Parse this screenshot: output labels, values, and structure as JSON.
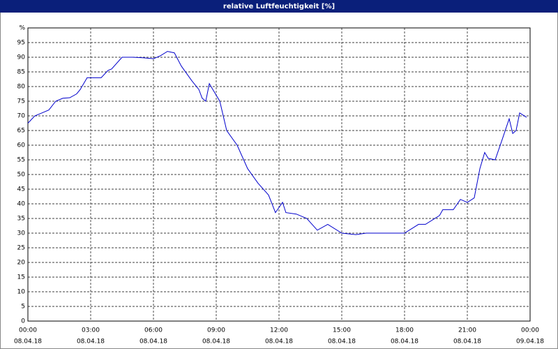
{
  "chart_data": {
    "type": "line",
    "title": "relative Luftfeuchtigkeit [%]",
    "color": "#0000cc",
    "grid": true,
    "xlim": [
      0,
      24
    ],
    "xticks": [
      {
        "value": 0,
        "label": "00:00",
        "date": "08.04.18"
      },
      {
        "value": 3,
        "label": "03:00",
        "date": "08.04.18"
      },
      {
        "value": 6,
        "label": "06:00",
        "date": "08.04.18"
      },
      {
        "value": 9,
        "label": "09:00",
        "date": "08.04.18"
      },
      {
        "value": 12,
        "label": "12:00",
        "date": "08.04.18"
      },
      {
        "value": 15,
        "label": "15:00",
        "date": "08.04.18"
      },
      {
        "value": 18,
        "label": "18:00",
        "date": "08.04.18"
      },
      {
        "value": 21,
        "label": "21:00",
        "date": "08.04.18"
      },
      {
        "value": 24,
        "label": "00:00",
        "date": "09.04.18"
      }
    ],
    "ylim": [
      0,
      100
    ],
    "yticks": [
      0,
      5,
      10,
      15,
      20,
      25,
      30,
      35,
      40,
      45,
      50,
      55,
      60,
      65,
      70,
      75,
      80,
      85,
      90,
      95,
      {
        "value": 100,
        "label": "%"
      }
    ],
    "x": [
      0,
      0.33,
      0.67,
      1,
      1.33,
      1.67,
      2,
      2.33,
      2.5,
      2.83,
      3,
      3.5,
      3.83,
      4,
      4.5,
      5,
      5.5,
      6,
      6.33,
      6.67,
      7,
      7.33,
      7.83,
      8.17,
      8.33,
      8.5,
      8.67,
      9.17,
      9.5,
      10,
      10.5,
      11,
      11.5,
      11.83,
      12.17,
      12.33,
      12.83,
      13.33,
      13.83,
      14.33,
      15,
      15.67,
      16.17,
      16.67,
      17.33,
      18,
      18.67,
      19,
      19.67,
      19.83,
      20.33,
      20.67,
      21,
      21.33,
      21.6,
      21.83,
      22,
      22.33,
      22.67,
      23,
      23.17,
      23.33,
      23.5,
      23.83
    ],
    "values": [
      67.5,
      70,
      71,
      72,
      75,
      76,
      76.2,
      77.5,
      79,
      83,
      83,
      83,
      85.5,
      86,
      90,
      90,
      89.8,
      89.5,
      90.5,
      92,
      91.5,
      87,
      82,
      79,
      76,
      75,
      81,
      75,
      65,
      60,
      52,
      47,
      43,
      37,
      40.5,
      37,
      36.5,
      35,
      31,
      33,
      30,
      29.5,
      30,
      30,
      30,
      30,
      33,
      33,
      36,
      38,
      38,
      41.5,
      40.5,
      42,
      52,
      57.5,
      55.5,
      55,
      62,
      69,
      64,
      65,
      71,
      69.5
    ]
  }
}
